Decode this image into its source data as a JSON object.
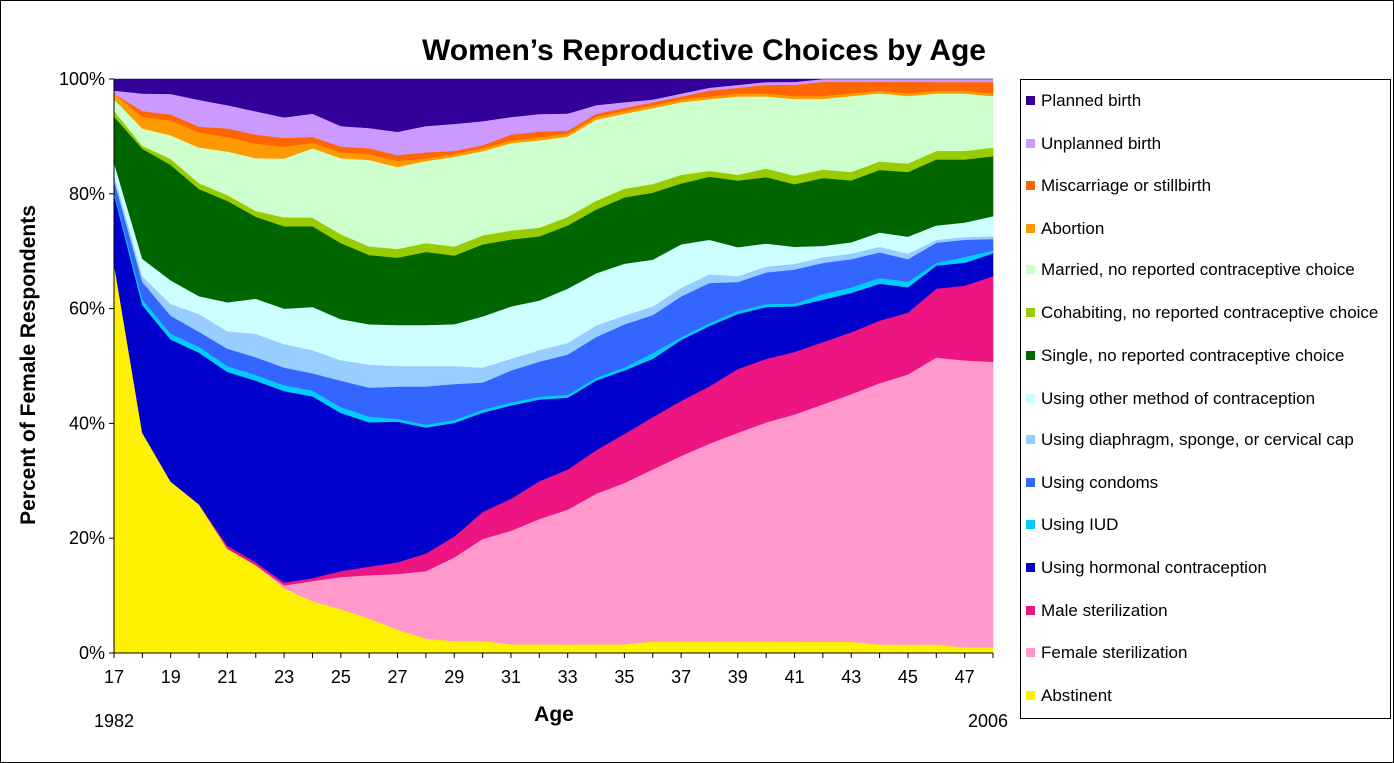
{
  "chart_data": {
    "type": "area",
    "stacked": true,
    "percent": true,
    "title": "Women’s Reproductive Choices by Age",
    "xlabel": "Age",
    "ylabel": "Percent of Female Respondents",
    "x": [
      17,
      18,
      19,
      20,
      21,
      22,
      23,
      24,
      25,
      26,
      27,
      28,
      29,
      30,
      31,
      32,
      33,
      34,
      35,
      36,
      37,
      38,
      39,
      40,
      41,
      42,
      43,
      44,
      45,
      46,
      47,
      48
    ],
    "xtick_labels": [
      "17",
      "19",
      "21",
      "23",
      "25",
      "27",
      "29",
      "31",
      "33",
      "35",
      "37",
      "39",
      "41",
      "43",
      "45",
      "47"
    ],
    "ytick_labels": [
      "0%",
      "20%",
      "40%",
      "60%",
      "80%",
      "100%"
    ],
    "ylim": [
      0,
      100
    ],
    "year_start_label": "1982",
    "year_end_label": "2006",
    "series": [
      {
        "name": "Abstinent",
        "color": "#FFF200",
        "values": [
          68,
          38,
          29,
          25,
          18,
          15,
          11,
          9,
          7.5,
          6,
          4,
          2.5,
          2,
          2,
          1.5,
          1.5,
          1.5,
          1.5,
          1.5,
          2,
          2,
          2,
          2,
          2,
          2,
          2,
          2,
          1.5,
          1.5,
          1.5,
          1,
          1
        ]
      },
      {
        "name": "Female sterilization",
        "color": "#FF99CC",
        "values": [
          0,
          0,
          0,
          0,
          0,
          0,
          0.5,
          3.5,
          5.5,
          7.5,
          9.5,
          11.5,
          14,
          17,
          19.5,
          21.5,
          23.5,
          26,
          28,
          29.5,
          32,
          34.5,
          36,
          38,
          40,
          42,
          44,
          46,
          48,
          50,
          50,
          50
        ]
      },
      {
        "name": "Male sterilization",
        "color": "#EC1582",
        "values": [
          0,
          0,
          0,
          0,
          0.5,
          0.5,
          0.5,
          0.5,
          1,
          1.5,
          2,
          3,
          3.5,
          4.5,
          5.5,
          6.5,
          7,
          7.5,
          8.5,
          9,
          9.5,
          10,
          11,
          11,
          11,
          11,
          11,
          11,
          11,
          12,
          13,
          15
        ]
      },
      {
        "name": "Using hormonal contraception",
        "color": "#0000CC",
        "values": [
          12,
          22,
          24,
          25.5,
          30,
          31,
          32.5,
          31.5,
          27,
          25,
          24,
          21.5,
          19,
          16.5,
          16,
          14,
          12.5,
          12,
          11,
          10,
          10.5,
          10.5,
          9.5,
          9,
          8,
          7.5,
          7,
          6.5,
          4.5,
          4,
          4,
          4
        ]
      },
      {
        "name": "Using IUD",
        "color": "#00CCFF",
        "values": [
          0.5,
          1,
          1,
          1,
          1,
          1,
          1,
          1,
          1,
          1,
          0.5,
          0.5,
          0.5,
          0.5,
          0.5,
          0.5,
          0.5,
          0.5,
          0.5,
          1,
          0.5,
          0.5,
          0.5,
          0.5,
          0.5,
          1,
          1,
          1,
          1,
          0.5,
          1,
          0.5
        ]
      },
      {
        "name": "Using condoms",
        "color": "#3366FF",
        "values": [
          2,
          3,
          3,
          2.5,
          3,
          3,
          3,
          3,
          4.5,
          5,
          5.5,
          6.5,
          6,
          4.5,
          5.5,
          6,
          7,
          7,
          7.5,
          6.5,
          7,
          7,
          5,
          5.5,
          6,
          5.5,
          5,
          4.5,
          4,
          3.5,
          3,
          2
        ]
      },
      {
        "name": "Using diaphragm, sponge, or cervical cap",
        "color": "#99CCFF",
        "values": [
          1,
          1,
          2,
          3,
          3,
          4,
          4,
          4,
          3.5,
          4,
          3.5,
          3.5,
          3,
          2.5,
          2,
          2,
          2,
          2,
          1.5,
          1.5,
          1.5,
          1.5,
          1,
          1,
          1,
          1,
          1,
          1,
          1,
          0.5,
          0.5,
          0.5
        ]
      },
      {
        "name": "Using other method of contraception",
        "color": "#CCFFFF",
        "values": [
          2,
          3,
          4,
          3,
          5,
          6,
          6,
          7.5,
          7,
          7,
          7,
          7,
          7,
          8.5,
          9,
          8.5,
          9.5,
          9,
          9,
          8,
          7.5,
          6,
          5,
          4,
          3,
          2,
          2,
          2.5,
          3,
          2.5,
          2.5,
          3.5
        ]
      },
      {
        "name": "Single, no reported contraceptive choice",
        "color": "#006600",
        "values": [
          8,
          19,
          19.5,
          18,
          17.5,
          14,
          14,
          14,
          13,
          12,
          11.5,
          12.5,
          11.5,
          12,
          11.5,
          11,
          11,
          11,
          11.5,
          11.5,
          10.5,
          11,
          11.5,
          11.5,
          11,
          12,
          11,
          11,
          11.5,
          11.5,
          11,
          10.5
        ]
      },
      {
        "name": "Cohabiting, no reported contraceptive choice",
        "color": "#99CC00",
        "values": [
          1,
          0.5,
          1,
          1,
          1,
          1,
          1.5,
          1.5,
          1.5,
          1.5,
          1.5,
          1.5,
          1.5,
          1.5,
          1.5,
          1.5,
          1.5,
          1.5,
          1.5,
          1.5,
          1.5,
          1,
          1,
          1.5,
          1.5,
          1.5,
          1.5,
          1.5,
          1.5,
          1.5,
          1.5,
          1.5
        ]
      },
      {
        "name": "Married, no reported contraceptive choice",
        "color": "#CCFFCC",
        "values": [
          2,
          3,
          4,
          6,
          7.5,
          9,
          10,
          12,
          13,
          15,
          14,
          14,
          15,
          14,
          15,
          15,
          14,
          14,
          13,
          13,
          12.5,
          12.5,
          13.5,
          12.5,
          13.5,
          12.5,
          13.5,
          12,
          12,
          10,
          10,
          9
        ]
      },
      {
        "name": "Abortion",
        "color": "#FF9900",
        "values": [
          1,
          2,
          2.5,
          2.5,
          2.5,
          2.5,
          2,
          1,
          1,
          1,
          1,
          0.5,
          0.5,
          0.5,
          0.5,
          0.5,
          0.5,
          0.5,
          0.5,
          0.5,
          0.5,
          0.5,
          0.5,
          0.5,
          0.5,
          0.5,
          0.5,
          0.5,
          0.5,
          0.5,
          0.5,
          0.5
        ]
      },
      {
        "name": "Miscarriage or stillbirth",
        "color": "#FF6600",
        "values": [
          0,
          1,
          1,
          1,
          1.5,
          1.5,
          1.5,
          1,
          1,
          1,
          1,
          1,
          0.5,
          0.5,
          1,
          1,
          0.5,
          0.5,
          0.5,
          0.5,
          0.5,
          1,
          1,
          1.5,
          2,
          2.5,
          2,
          1.5,
          2,
          1.5,
          1.5,
          2
        ]
      },
      {
        "name": "Unplanned birth",
        "color": "#CC99FF",
        "values": [
          0.5,
          3,
          3.5,
          4.5,
          4,
          4,
          3.5,
          4,
          3.5,
          3.5,
          4,
          4.5,
          4.5,
          4,
          3,
          3,
          3,
          1.5,
          1,
          0.5,
          0.5,
          0.5,
          0.5,
          0.5,
          0.5,
          0.5,
          0.5,
          0.5,
          0.5,
          0.5,
          0.5,
          0.5
        ]
      },
      {
        "name": "Planned birth",
        "color": "#330099",
        "values": [
          2,
          2.5,
          2.5,
          3.5,
          4.5,
          5.5,
          6.5,
          6,
          8,
          8.5,
          9,
          8,
          7.5,
          7,
          6.5,
          6,
          6,
          4.5,
          4,
          3.5,
          2.5,
          1.5,
          1,
          0.5,
          0.5,
          0,
          0,
          0,
          0,
          0,
          0,
          0
        ]
      }
    ],
    "legend_order": [
      "Planned birth",
      "Unplanned birth",
      "Miscarriage or stillbirth",
      "Abortion",
      "Married, no reported contraceptive choice",
      "Cohabiting, no reported contraceptive choice",
      "Single, no reported contraceptive choice",
      "Using other method of contraception",
      "Using diaphragm, sponge, or cervical cap",
      "Using condoms",
      "Using IUD",
      "Using hormonal contraception",
      "Male sterilization",
      "Female sterilization",
      "Abstinent"
    ],
    "legend_position": "right"
  }
}
